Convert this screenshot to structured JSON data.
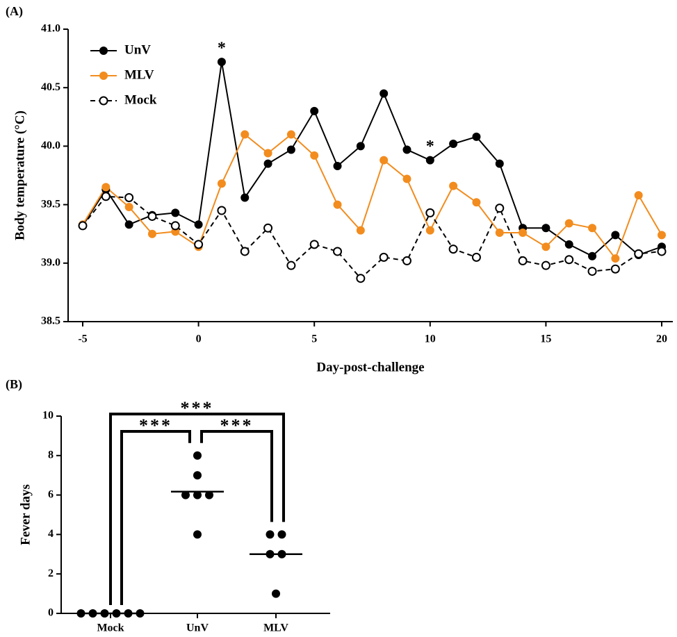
{
  "chart_data": [
    {
      "type": "line",
      "panel_label": "(A)",
      "xlabel": "Day-post-challenge",
      "ylabel": "Body temperature (°C)",
      "x": [
        -5,
        -4,
        -3,
        -2,
        -1,
        0,
        1,
        2,
        3,
        4,
        5,
        6,
        7,
        8,
        9,
        10,
        11,
        12,
        13,
        14,
        15,
        16,
        17,
        18,
        19,
        20
      ],
      "xlim": [
        -5.6,
        20.5
      ],
      "xticks": [
        -5,
        0,
        5,
        10,
        15,
        20
      ],
      "ylim": [
        38.5,
        41.0
      ],
      "yticks": [
        {
          "value": 38.5,
          "label": "38.5"
        },
        {
          "value": 39,
          "label": "39.0"
        },
        39.5,
        {
          "value": 40,
          "label": "40.0"
        },
        40.5,
        {
          "value": 41,
          "label": "41.0"
        }
      ],
      "legend": "upper left",
      "series": [
        {
          "name": "UnV",
          "color": "#000000",
          "line_style": "solid",
          "marker": "filled",
          "values": [
            39.32,
            39.63,
            39.33,
            39.41,
            39.43,
            39.33,
            40.72,
            39.56,
            39.85,
            39.97,
            40.3,
            39.83,
            40.0,
            40.45,
            39.97,
            39.88,
            40.02,
            40.08,
            39.85,
            39.3,
            39.3,
            39.16,
            39.06,
            39.24,
            39.07,
            39.14
          ]
        },
        {
          "name": "MLV",
          "color": "#f28c1e",
          "line_style": "solid",
          "marker": "filled",
          "values": [
            39.33,
            39.65,
            39.48,
            39.25,
            39.27,
            39.14,
            39.68,
            40.1,
            39.94,
            40.1,
            39.92,
            39.5,
            39.28,
            39.88,
            39.72,
            39.28,
            39.66,
            39.52,
            39.26,
            39.26,
            39.14,
            39.34,
            39.3,
            39.04,
            39.58,
            39.24
          ]
        },
        {
          "name": "Mock",
          "color": "#000000",
          "line_style": "dashed",
          "marker": "open",
          "values": [
            39.32,
            39.57,
            39.56,
            39.4,
            39.32,
            39.16,
            39.45,
            39.1,
            39.3,
            38.98,
            39.16,
            39.1,
            38.87,
            39.05,
            39.02,
            39.43,
            39.12,
            39.05,
            39.47,
            39.02,
            38.98,
            39.03,
            38.93,
            38.95,
            39.08,
            39.1
          ]
        }
      ],
      "annotations": [
        {
          "text": "*",
          "x": 1
        },
        {
          "text": "*",
          "x": 10
        }
      ]
    },
    {
      "type": "dot",
      "panel_label": "(B)",
      "ylabel": "Fever days",
      "categories": [
        "Mock",
        "UnV",
        "MLV"
      ],
      "points": [
        [
          0,
          0,
          0,
          0,
          0,
          0
        ],
        [
          8,
          7,
          6,
          6,
          6,
          4
        ],
        [
          4,
          4,
          3,
          3,
          1
        ]
      ],
      "means": [
        0,
        6.17,
        3
      ],
      "color": "#000000",
      "ylim": [
        0,
        10
      ],
      "yticks": [
        0,
        2,
        4,
        6,
        8,
        10
      ],
      "brackets": [
        {
          "from": 0,
          "to": 2,
          "label": "***"
        },
        {
          "from": 0,
          "to": 1,
          "label": "***"
        },
        {
          "from": 1,
          "to": 2,
          "label": "***"
        }
      ]
    }
  ]
}
